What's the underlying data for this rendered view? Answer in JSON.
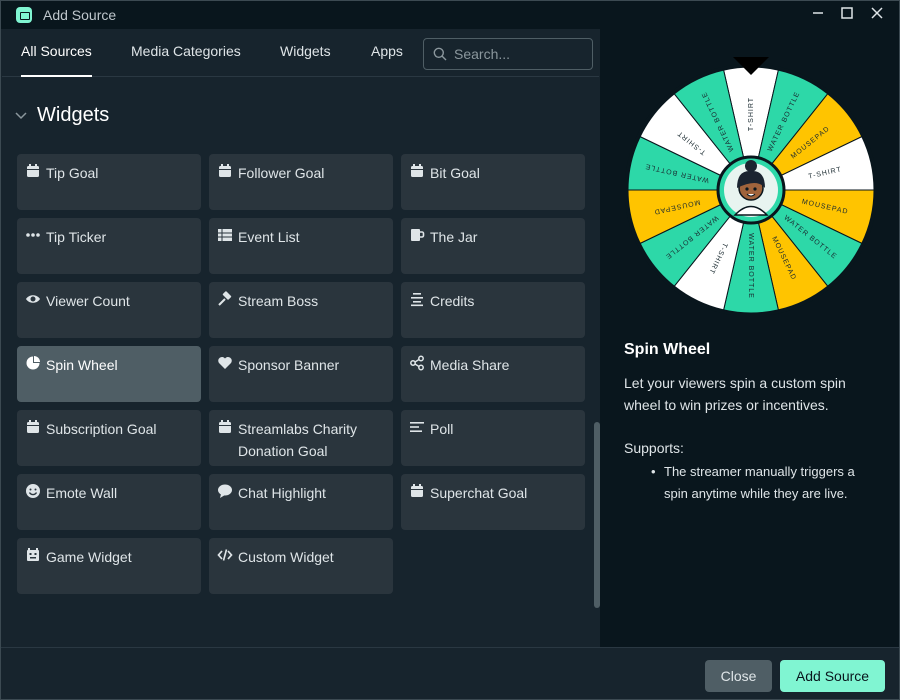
{
  "window": {
    "title": "Add Source"
  },
  "tabs": [
    "All Sources",
    "Media Categories",
    "Widgets",
    "Apps"
  ],
  "search": {
    "placeholder": "Search..."
  },
  "section": {
    "title": "Widgets"
  },
  "widgets": [
    {
      "label": "Tip Goal",
      "icon": "calendar-icon"
    },
    {
      "label": "Follower Goal",
      "icon": "calendar-icon"
    },
    {
      "label": "Bit Goal",
      "icon": "calendar-icon"
    },
    {
      "label": "Tip Ticker",
      "icon": "ellipsis-icon"
    },
    {
      "label": "Event List",
      "icon": "list-table-icon"
    },
    {
      "label": "The Jar",
      "icon": "jar-icon"
    },
    {
      "label": "Viewer Count",
      "icon": "eye-icon"
    },
    {
      "label": "Stream Boss",
      "icon": "hammer-icon"
    },
    {
      "label": "Credits",
      "icon": "credits-icon"
    },
    {
      "label": "Spin Wheel",
      "icon": "pie-icon",
      "selected": true
    },
    {
      "label": "Sponsor Banner",
      "icon": "heart-icon"
    },
    {
      "label": "Media Share",
      "icon": "share-icon"
    },
    {
      "label": "Subscription Goal",
      "icon": "calendar-icon"
    },
    {
      "label": "Streamlabs Charity Donation Goal",
      "icon": "calendar-icon"
    },
    {
      "label": "Poll",
      "icon": "poll-icon"
    },
    {
      "label": "Emote Wall",
      "icon": "smiley-icon"
    },
    {
      "label": "Chat Highlight",
      "icon": "chat-bubble-icon"
    },
    {
      "label": "Superchat Goal",
      "icon": "calendar-icon"
    },
    {
      "label": "Game Widget",
      "icon": "game-icon"
    },
    {
      "label": "Custom Widget",
      "icon": "code-icon"
    }
  ],
  "preview": {
    "wheel_segments": [
      "T-SHIRT",
      "WATER BOTTLE",
      "MOUSEPAD",
      "T-SHIRT",
      "MOUSEPAD",
      "WATER BOTTLE",
      "MOUSEPAD",
      "WATER BOTTLE",
      "T-SHIRT",
      "WATER BOTTLE",
      "MOUSEPAD",
      "WATER BOTTLE",
      "T-SHIRT",
      "WATER BOTTLE"
    ],
    "title": "Spin Wheel",
    "description": "Let your viewers spin a custom spin wheel to win prizes or incentives.",
    "supports_title": "Supports:",
    "supports": [
      "The streamer manually triggers a spin anytime while they are live."
    ]
  },
  "footer": {
    "close_label": "Close",
    "add_label": "Add Source"
  },
  "colors": {
    "accent": "#80f5d2",
    "wheel_teal": "#2dd8a8",
    "wheel_yellow": "#ffc400",
    "wheel_white": "#ffffff"
  }
}
